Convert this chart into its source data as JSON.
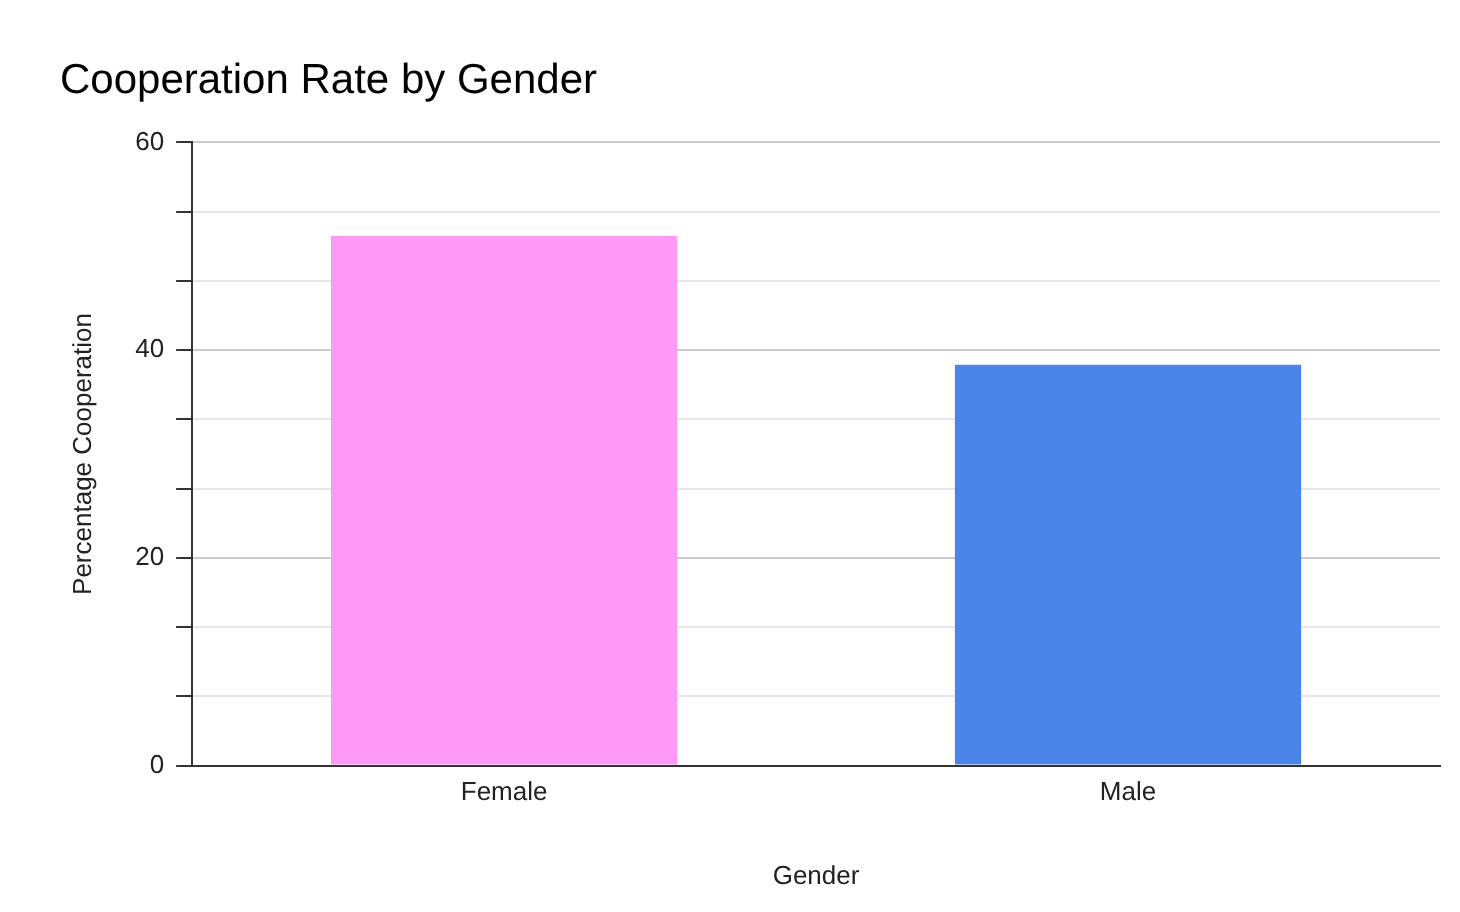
{
  "chart_data": {
    "type": "bar",
    "title": "Cooperation Rate by Gender",
    "xlabel": "Gender",
    "ylabel": "Percentage Cooperation",
    "categories": [
      "Female",
      "Male"
    ],
    "values": [
      51,
      38.6
    ],
    "colors": [
      "#ff99f7",
      "#4a86e8"
    ],
    "ylim": [
      0,
      60
    ],
    "yticks": [
      0,
      {
        "value": 6.67,
        "label": null
      },
      {
        "value": 13.33,
        "label": null
      },
      20,
      {
        "value": 26.67,
        "label": null
      },
      {
        "value": 33.33,
        "label": null
      },
      40,
      {
        "value": 46.67,
        "label": null
      },
      {
        "value": 53.33,
        "label": null
      },
      60
    ],
    "grid": "y",
    "legend": false
  }
}
